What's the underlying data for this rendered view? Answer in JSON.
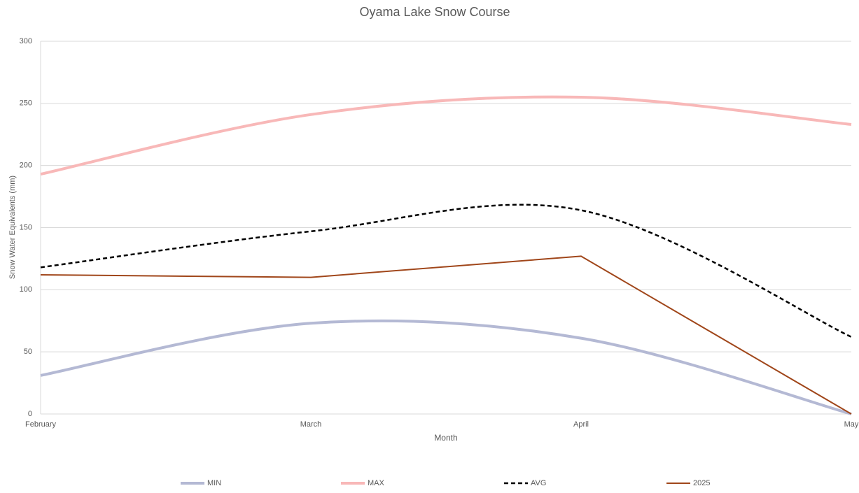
{
  "chart_data": {
    "type": "line",
    "title": "Oyama Lake Snow Course",
    "x_label": "Month",
    "y_label": "Snow Water Equivalents (mm)",
    "categories": [
      "February",
      "March",
      "April",
      "May"
    ],
    "series": [
      {
        "name": "MIN",
        "color": "#b4b9d4",
        "width": 4,
        "smooth": true,
        "dash": false,
        "values": [
          31,
          73,
          61,
          0
        ]
      },
      {
        "name": "MAX",
        "color": "#f8b8b8",
        "width": 4,
        "smooth": true,
        "dash": false,
        "values": [
          193,
          241,
          255,
          233
        ]
      },
      {
        "name": "AVG",
        "color": "#000000",
        "width": 2.5,
        "smooth": true,
        "dash": true,
        "values": [
          118,
          147,
          164,
          62
        ]
      },
      {
        "name": "2025",
        "color": "#a0461a",
        "width": 2,
        "smooth": false,
        "dash": false,
        "values": [
          112,
          110,
          127,
          0
        ]
      }
    ],
    "ylim": [
      0,
      300
    ],
    "yticks": [
      0,
      50,
      100,
      150,
      200,
      250,
      300
    ],
    "grid": true,
    "legend": "bottom"
  }
}
